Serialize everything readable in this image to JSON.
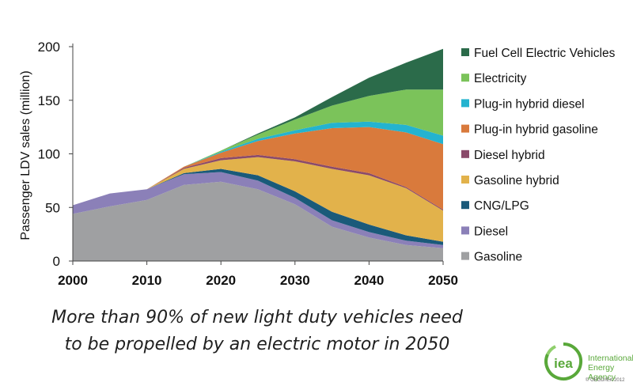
{
  "chart_data": {
    "type": "area",
    "stacked": true,
    "ylabel": "Passenger LDV sales (million)",
    "xlabel": "",
    "x": [
      2000,
      2005,
      2010,
      2015,
      2020,
      2025,
      2030,
      2035,
      2040,
      2045,
      2050
    ],
    "x_ticks": [
      2000,
      2010,
      2020,
      2030,
      2040,
      2050
    ],
    "y_ticks": [
      0,
      50,
      100,
      150,
      200
    ],
    "ylim": [
      0,
      200
    ],
    "xlim": [
      2000,
      2050
    ],
    "legend_position": "right",
    "series": [
      {
        "name": "Gasoline",
        "color": "#9fa0a2",
        "values": [
          44,
          51,
          57,
          71,
          74,
          67,
          53,
          32,
          22,
          15,
          12
        ]
      },
      {
        "name": "Diesel",
        "color": "#8b80b8",
        "values": [
          8,
          12,
          10,
          10,
          9,
          8,
          6,
          6,
          5,
          4,
          3
        ]
      },
      {
        "name": "CNG/LPG",
        "color": "#1a5a7a",
        "values": [
          0,
          0,
          0,
          1,
          3,
          5,
          6,
          8,
          7,
          5,
          3
        ]
      },
      {
        "name": "Gasoline hybrid",
        "color": "#e2b24b",
        "values": [
          0,
          0,
          0,
          4,
          8,
          17,
          28,
          40,
          46,
          44,
          29
        ]
      },
      {
        "name": "Diesel hybrid",
        "color": "#8a4a6a",
        "values": [
          0,
          0,
          0,
          1,
          2,
          2,
          2,
          2,
          2,
          1,
          1
        ]
      },
      {
        "name": "Plug-in hybrid gasoline",
        "color": "#d97a3c",
        "values": [
          0,
          0,
          0,
          1,
          5,
          13,
          24,
          36,
          43,
          51,
          61
        ]
      },
      {
        "name": "Plug-in hybrid diesel",
        "color": "#24b3cf",
        "values": [
          0,
          0,
          0,
          0,
          1,
          2,
          3,
          5,
          5,
          7,
          8
        ]
      },
      {
        "name": "Electricity",
        "color": "#7bc35a",
        "values": [
          0,
          0,
          0,
          0,
          1,
          4,
          10,
          16,
          24,
          33,
          43
        ]
      },
      {
        "name": "Fuel Cell Electric Vehicles",
        "color": "#2b6b4a",
        "values": [
          0,
          0,
          0,
          0,
          0,
          1,
          2,
          8,
          17,
          25,
          38
        ]
      }
    ],
    "title": ""
  },
  "caption": {
    "line1": "More than 90% of new light duty vehicles need",
    "line2": "to be propelled by an electric motor in 2050"
  },
  "logo": {
    "mark": "iea",
    "line1": "International",
    "line2": "Energy Agency",
    "copyright": "© OECD/IEA 2012",
    "color": "#59a83a"
  }
}
